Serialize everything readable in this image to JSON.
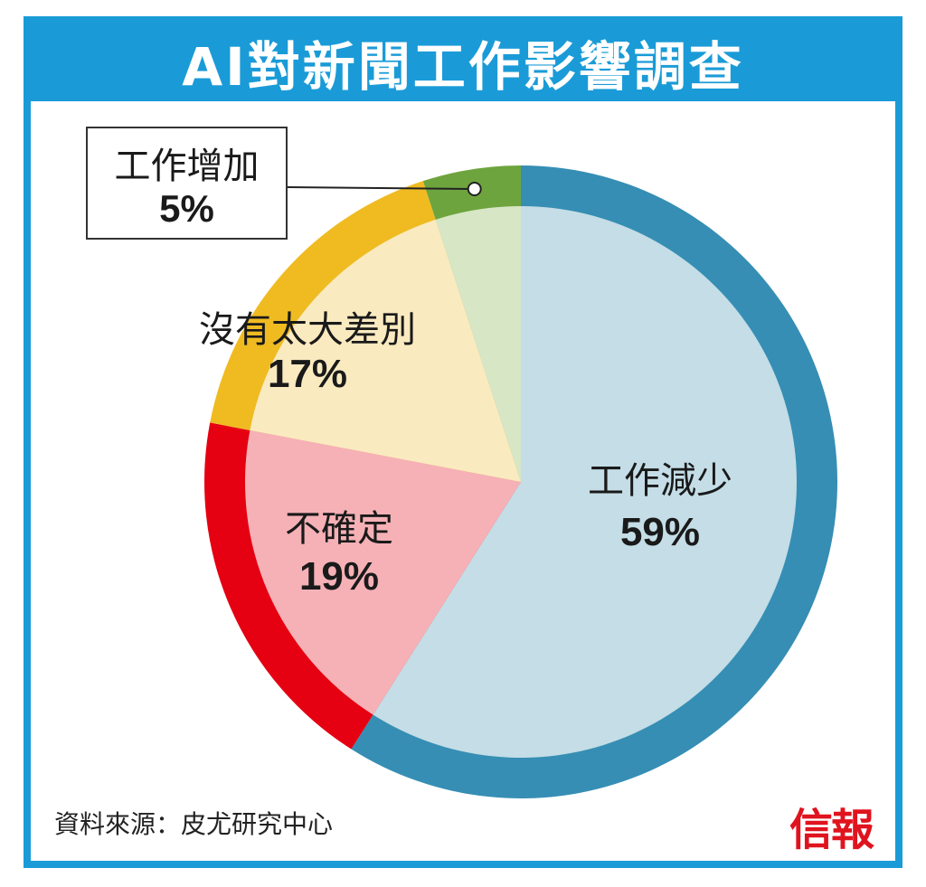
{
  "title": "AI對新聞工作影響調查",
  "source": "資料來源：皮尤研究中心",
  "logo": "信報",
  "chart_data": {
    "type": "pie",
    "title": "AI對新聞工作影響調查",
    "slices": [
      {
        "label": "工作減少",
        "value": 59,
        "value_label": "59%",
        "ring_color": "#368eb4",
        "fill_color": "#c4dde6"
      },
      {
        "label": "不確定",
        "value": 19,
        "value_label": "19%",
        "ring_color": "#e50012",
        "fill_color": "#f5b1b6"
      },
      {
        "label": "沒有太大差別",
        "value": 17,
        "value_label": "17%",
        "ring_color": "#efbb21",
        "fill_color": "#faeac0"
      },
      {
        "label": "工作增加",
        "value": 5,
        "value_label": "5%",
        "ring_color": "#6ea43e",
        "fill_color": "#d7e6c5"
      }
    ],
    "start": "12 o'clock",
    "direction": "clockwise",
    "callout_slice": "工作增加"
  }
}
